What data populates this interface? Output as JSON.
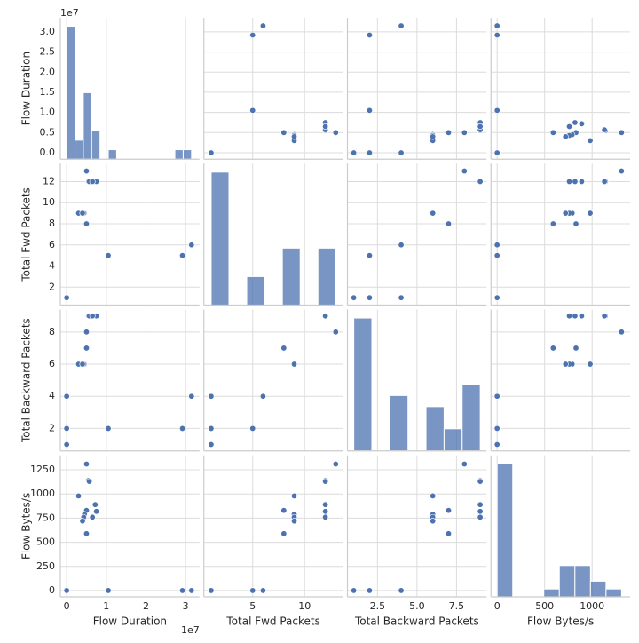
{
  "chart_data": {
    "type": "pairplot",
    "color": "#4c72b0",
    "grid": true,
    "variables": [
      {
        "label": "Flow Duration",
        "offset_label": "1e7",
        "bin_count": 15,
        "lim": [
          -0.16,
          3.35
        ],
        "xticks": [
          0,
          1,
          2,
          3
        ],
        "yticks": [
          {
            "value": 0,
            "label": "0.0"
          },
          {
            "value": 0.5,
            "label": "0.5"
          },
          {
            "value": 1,
            "label": "1.0"
          },
          {
            "value": 1.5,
            "label": "1.5"
          },
          {
            "value": 2,
            "label": "2.0"
          },
          {
            "value": 2.5,
            "label": "2.5"
          },
          {
            "value": 3,
            "label": "3.0"
          }
        ],
        "values": [
          0,
          0,
          0,
          0,
          0,
          0,
          0,
          0,
          0,
          0,
          0,
          0,
          0,
          0,
          1.05,
          2.92,
          3.15,
          0.5,
          0.5,
          0.45,
          0.43,
          0.3,
          0.4,
          0.55,
          0.57,
          0.72,
          0.75,
          0.65,
          0.5
        ]
      },
      {
        "label": "Total Fwd Packets",
        "bin_count": 7,
        "lim": [
          0.3,
          13.7
        ],
        "xticks": [
          5,
          10
        ],
        "yticks": [
          2,
          4,
          6,
          8,
          10,
          12
        ],
        "values": [
          1,
          1,
          1,
          1,
          1,
          1,
          1,
          1,
          1,
          1,
          1,
          1,
          1,
          1,
          5,
          5,
          6,
          8,
          8,
          9,
          9,
          9,
          9,
          12,
          12,
          12,
          12,
          12,
          13
        ]
      },
      {
        "label": "Total Backward Packets",
        "bin_count": 7,
        "lim": [
          0.6,
          9.4
        ],
        "xticks": [
          2.5,
          {
            "value": 5,
            "label": "5.0"
          },
          7.5
        ],
        "yticks": [
          2,
          4,
          6,
          8
        ],
        "values": [
          1,
          1,
          1,
          1,
          1,
          1,
          2,
          2,
          2,
          2,
          4,
          4,
          4,
          4,
          2,
          2,
          4,
          7,
          7,
          6,
          6,
          6,
          6,
          9,
          9,
          9,
          9,
          9,
          8
        ]
      },
      {
        "label": "Flow Bytes/s",
        "bin_count": 8,
        "lim": [
          -65,
          1400
        ],
        "xticks": [
          0,
          500,
          1000
        ],
        "yticks": [
          0,
          250,
          500,
          750,
          1000,
          1250
        ],
        "values": [
          0,
          0,
          0,
          0,
          0,
          0,
          0,
          0,
          0,
          0,
          0,
          0,
          0,
          0,
          0,
          0,
          0,
          590,
          830,
          790,
          760,
          980,
          720,
          1140,
          1130,
          890,
          820,
          760,
          1310
        ]
      }
    ]
  }
}
